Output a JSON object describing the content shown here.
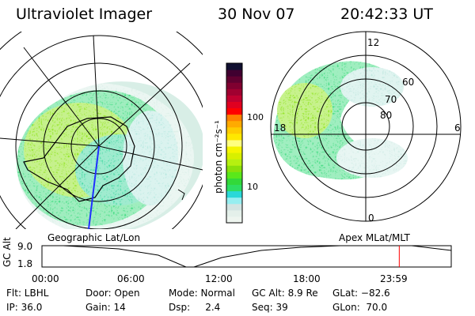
{
  "header": {
    "instrument": "Ultraviolet Imager",
    "date": "30 Nov 07",
    "time": "20:42:33 UT"
  },
  "colorbar": {
    "label": "photon cm⁻²s⁻¹",
    "ticks": [
      "100",
      "10"
    ],
    "colors": [
      "#eef5ef",
      "#e4f0ea",
      "#d2e4e2",
      "#96eef0",
      "#2ad8d8",
      "#2ede62",
      "#32d93a",
      "#5ae81a",
      "#8ae00a",
      "#b6f010",
      "#d8f000",
      "#f5f500",
      "#ffff80",
      "#ffe800",
      "#ffcc00",
      "#ffaa00",
      "#ff8000",
      "#ff0000",
      "#e00020",
      "#c00030",
      "#a00030",
      "#800030",
      "#600030",
      "#400030",
      "#101030"
    ]
  },
  "left_map": {
    "label": "Geographic Lat/Lon"
  },
  "right_map": {
    "label": "Apex MLat/MLT",
    "lat_labels": [
      "80",
      "70",
      "60"
    ],
    "mlt_labels": [
      "12",
      "18",
      "6",
      "0"
    ]
  },
  "alt_plot": {
    "ylabel": "GC Alt",
    "yticks": [
      "9.0",
      "1.8"
    ],
    "xticks": [
      "00:00",
      "06:00",
      "12:00",
      "18:00",
      "23:59"
    ],
    "current_time_fraction": 0.873
  },
  "info": {
    "row1": [
      "Flt: LBHL",
      "Door: Open",
      "Mode: Normal",
      "GC Alt: 8.9 Re",
      "GLat: −82.6"
    ],
    "row2": [
      "IP: 36.0",
      "Gain: 14",
      "Dsp:     2.4",
      "Seq: 39",
      "GLon:  70.0"
    ]
  },
  "colors": {
    "marker": "#ff0000"
  }
}
